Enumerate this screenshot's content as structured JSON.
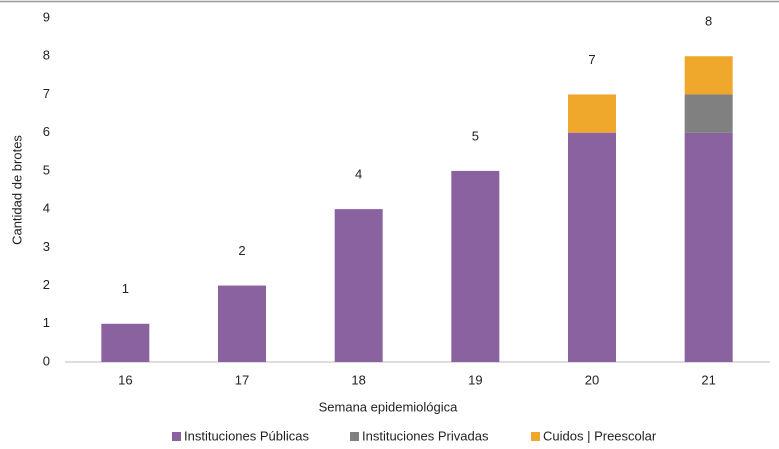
{
  "chart_data": {
    "type": "stacked_bar",
    "categories": [
      "16",
      "17",
      "18",
      "19",
      "20",
      "21"
    ],
    "series": [
      {
        "name": "Instituciones Públicas",
        "color": "#8a62a0",
        "values": [
          1,
          2,
          4,
          5,
          6,
          6
        ]
      },
      {
        "name": "Instituciones Privadas",
        "color": "#808080",
        "values": [
          0,
          0,
          0,
          0,
          0,
          1
        ]
      },
      {
        "name": "Cuidos | Preescolar",
        "color": "#f0a82c",
        "values": [
          0,
          0,
          0,
          0,
          1,
          1
        ]
      }
    ],
    "totals": [
      1,
      2,
      4,
      5,
      7,
      8
    ],
    "xlabel": "Semana epidemiológica",
    "ylabel": "Cantidad de brotes",
    "ylim": [
      0,
      9
    ],
    "yticks": [
      0,
      1,
      2,
      3,
      4,
      5,
      6,
      7,
      8,
      9
    ],
    "legend": "bottom"
  }
}
